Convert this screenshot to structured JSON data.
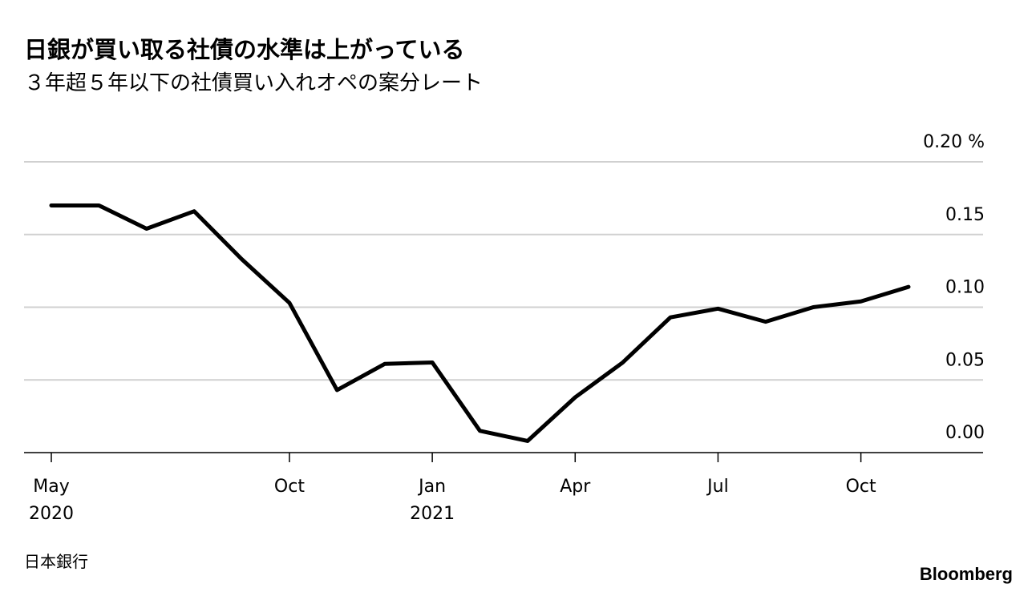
{
  "chart_data": {
    "type": "line",
    "title": "日銀が買い取る社債の水準は上がっている",
    "subtitle": "３年超５年以下の社債買い入れオペの案分レート",
    "source": "日本銀行",
    "brand": "Bloomberg",
    "x": [
      "2020-05",
      "2020-06",
      "2020-07",
      "2020-08",
      "2020-09",
      "2020-10",
      "2020-11",
      "2020-12",
      "2021-01",
      "2021-02",
      "2021-03",
      "2021-04",
      "2021-05",
      "2021-06",
      "2021-07",
      "2021-08",
      "2021-09",
      "2021-10",
      "2021-11"
    ],
    "series": [
      {
        "color": "#000000",
        "values": [
          0.17,
          0.17,
          0.154,
          0.166,
          0.133,
          0.103,
          0.043,
          0.061,
          0.062,
          0.015,
          0.008,
          0.038,
          0.062,
          0.093,
          0.099,
          0.09,
          0.1,
          0.104,
          0.114
        ]
      }
    ],
    "ylim": [
      0,
      0.2
    ],
    "yticks": [
      {
        "value": 0,
        "label": "0.00"
      },
      {
        "value": 0.05,
        "label": "0.05"
      },
      {
        "value": 0.1,
        "label": "0.10"
      },
      {
        "value": 0.15,
        "label": "0.15"
      },
      {
        "value": 0.2,
        "label": "0.20 %"
      }
    ],
    "xticks": [
      {
        "value": "2020-05",
        "label": "May",
        "year": "2020"
      },
      {
        "value": "2020-10",
        "label": "Oct"
      },
      {
        "value": "2021-01",
        "label": "Jan",
        "year": "2021"
      },
      {
        "value": "2021-04",
        "label": "Apr"
      },
      {
        "value": "2021-07",
        "label": "Jul"
      },
      {
        "value": "2021-10",
        "label": "Oct"
      }
    ],
    "grid": true
  }
}
